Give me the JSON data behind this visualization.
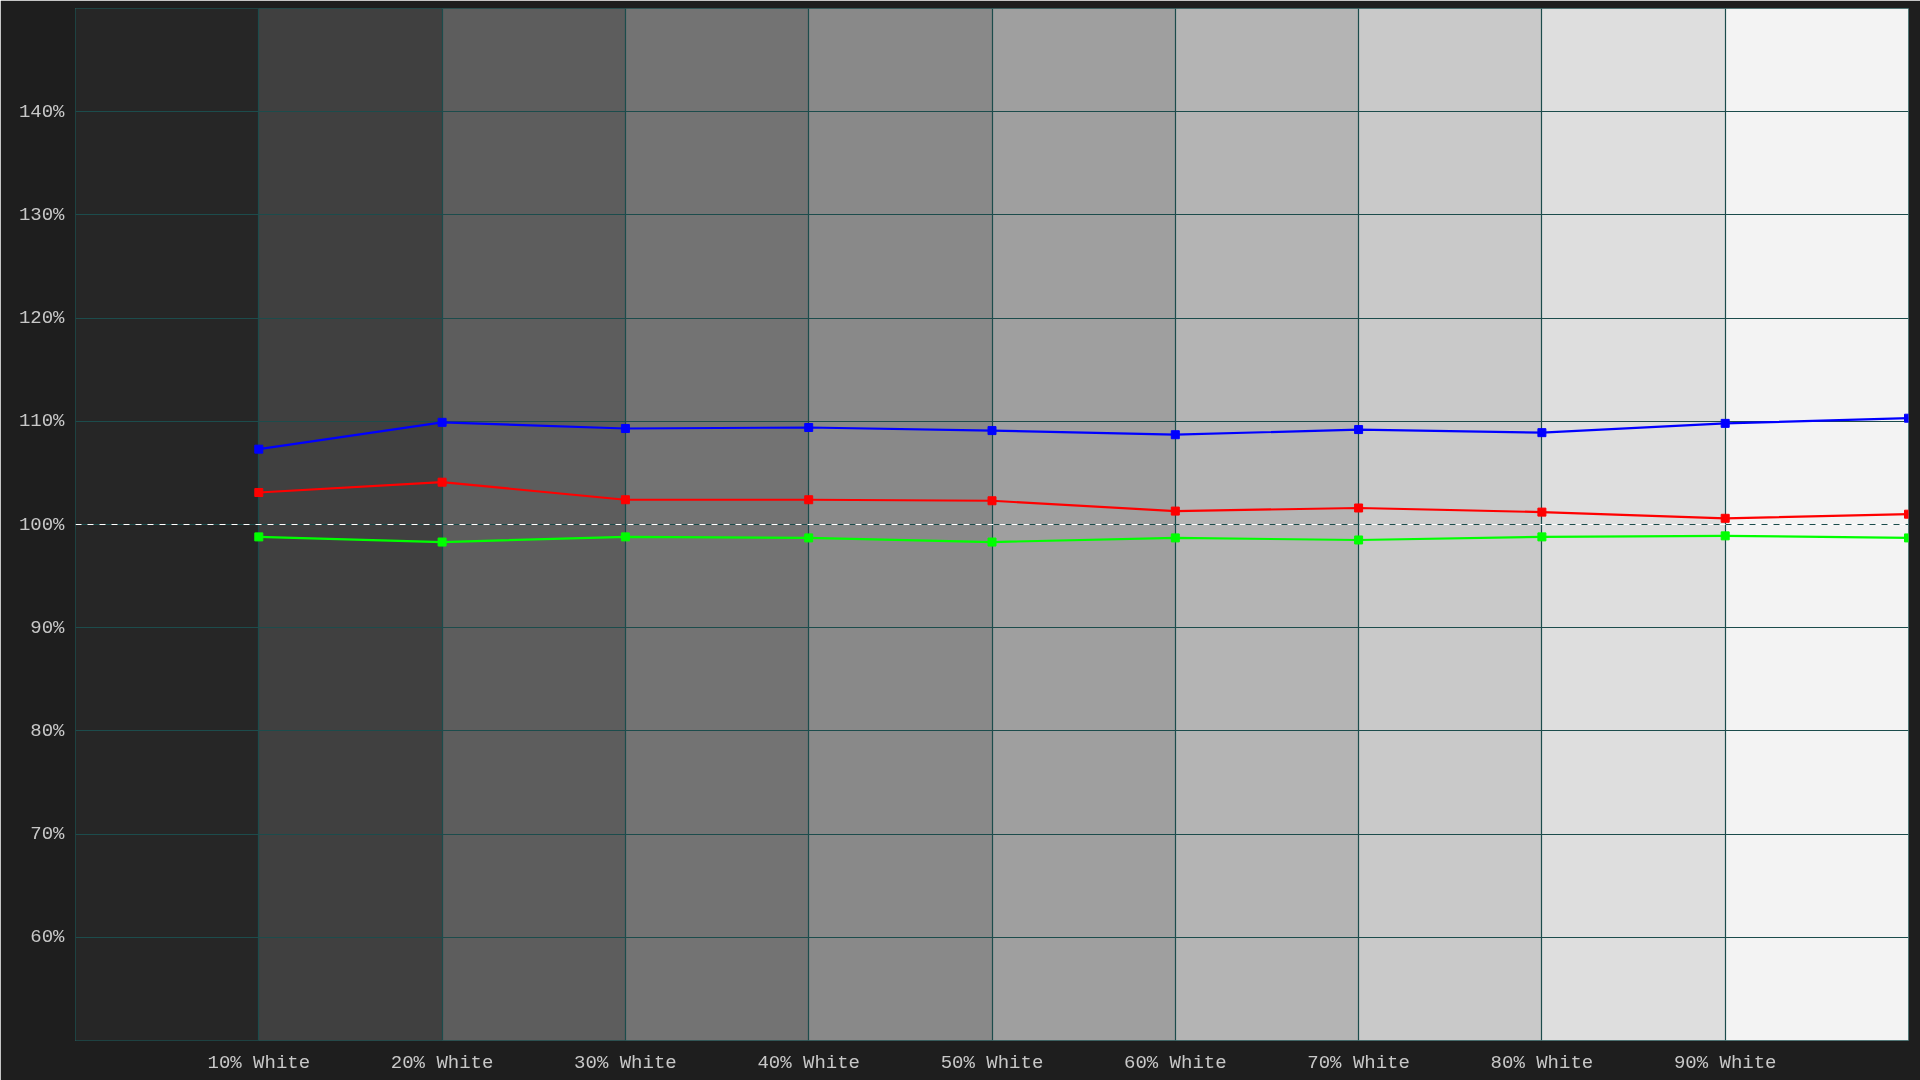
{
  "chart_data": {
    "type": "line",
    "x": [
      10,
      20,
      30,
      40,
      50,
      60,
      70,
      80,
      90,
      100
    ],
    "series": [
      {
        "color": "#0000ff",
        "values": [
          107.3,
          109.9,
          109.3,
          109.4,
          109.1,
          108.7,
          109.2,
          108.9,
          109.8,
          110.3
        ]
      },
      {
        "color": "#ff0000",
        "values": [
          103.1,
          104.1,
          102.4,
          102.4,
          102.3,
          101.3,
          101.6,
          101.2,
          100.6,
          101.0
        ]
      },
      {
        "color": "#00ff00",
        "values": [
          98.8,
          98.3,
          98.8,
          98.7,
          98.3,
          98.7,
          98.5,
          98.8,
          98.9,
          98.7
        ]
      }
    ],
    "xlim": [
      0,
      100
    ],
    "ylim": [
      50,
      150
    ],
    "xticks": [
      {
        "value": 10,
        "label": "10% White"
      },
      {
        "value": 20,
        "label": "20% White"
      },
      {
        "value": 30,
        "label": "30% White"
      },
      {
        "value": 40,
        "label": "40% White"
      },
      {
        "value": 50,
        "label": "50% White"
      },
      {
        "value": 60,
        "label": "60% White"
      },
      {
        "value": 70,
        "label": "70% White"
      },
      {
        "value": 80,
        "label": "80% White"
      },
      {
        "value": 90,
        "label": "90% White"
      }
    ],
    "yticks": [
      {
        "value": 60,
        "label": "60%"
      },
      {
        "value": 70,
        "label": "70%"
      },
      {
        "value": 80,
        "label": "80%"
      },
      {
        "value": 90,
        "label": "90%"
      },
      {
        "value": 100,
        "label": "100%"
      },
      {
        "value": 110,
        "label": "110%"
      },
      {
        "value": 120,
        "label": "120%"
      },
      {
        "value": 130,
        "label": "130%"
      },
      {
        "value": 140,
        "label": "140%"
      }
    ],
    "ref_lines": [
      {
        "axis": "y",
        "value": 100,
        "color": "#ffffff",
        "line_style": "dashed"
      }
    ],
    "bands": [
      {
        "axis": "x",
        "from": 0,
        "to": 10,
        "color": "#262626"
      },
      {
        "axis": "x",
        "from": 10,
        "to": 20,
        "color": "#404040"
      },
      {
        "axis": "x",
        "from": 20,
        "to": 30,
        "color": "#5d5d5d"
      },
      {
        "axis": "x",
        "from": 30,
        "to": 40,
        "color": "#737373"
      },
      {
        "axis": "x",
        "from": 40,
        "to": 50,
        "color": "#898989"
      },
      {
        "axis": "x",
        "from": 50,
        "to": 60,
        "color": "#9f9f9f"
      },
      {
        "axis": "x",
        "from": 60,
        "to": 70,
        "color": "#b4b4b4"
      },
      {
        "axis": "x",
        "from": 70,
        "to": 80,
        "color": "#c9c9c9"
      },
      {
        "axis": "x",
        "from": 80,
        "to": 90,
        "color": "#dedede"
      },
      {
        "axis": "x",
        "from": 90,
        "to": 100,
        "color": "#f3f3f3"
      }
    ],
    "grid": true,
    "marker": "square",
    "line_style": "solid"
  }
}
